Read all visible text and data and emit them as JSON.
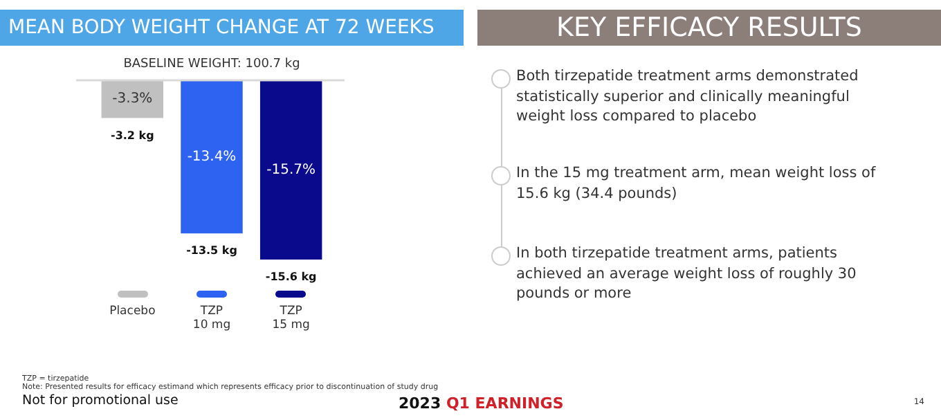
{
  "chart_data": [
    {
      "type": "bar",
      "title": "MEAN BODY WEIGHT CHANGE AT 72 WEEKS",
      "categories": [
        "Placebo",
        "TZP 10 mg",
        "TZP 15 mg"
      ],
      "values": [
        -3.3,
        -13.4,
        -15.7
      ],
      "colors": [
        "#c0c0c0",
        "#2e62f0",
        "#0a0a8c"
      ],
      "value_labels": [
        "-3.3%",
        "-13.4%",
        "-15.7%"
      ],
      "ref_lines": [
        {
          "axis": "y",
          "value": 0,
          "color": "#d9d9d9"
        }
      ],
      "annotations": [
        "BASELINE WEIGHT: 100.7 kg",
        {
          "text": "-3.2 kg",
          "x": "Placebo",
          "y": -3.3
        },
        {
          "text": "-13.5 kg",
          "x": "TZP 10 mg",
          "y": -13.4
        },
        {
          "text": "-15.6 kg",
          "x": "TZP 15 mg",
          "y": -15.7
        },
        "TZP = tirzepatide",
        "Note: Presented results for efficacy estimand which represents efficacy prior to discontinuation of study drug",
        "Not for promotional use",
        "2023",
        "Q1 EARNINGS",
        "14"
      ],
      "tick_labels": "x"
    },
    {
      "type": "other",
      "title": "KEY EFFICACY RESULTS",
      "annotations": [
        "Both tirzepatide treatment arms demonstrated statistically superior and clinically meaningful weight loss compared to placebo",
        "In the 15 mg treatment arm, mean weight loss of 15.6 kg (34.4 pounds)",
        "In both tirzepatide treatment arms, patients achieved an average weight loss of roughly 30 pounds or more"
      ]
    }
  ]
}
